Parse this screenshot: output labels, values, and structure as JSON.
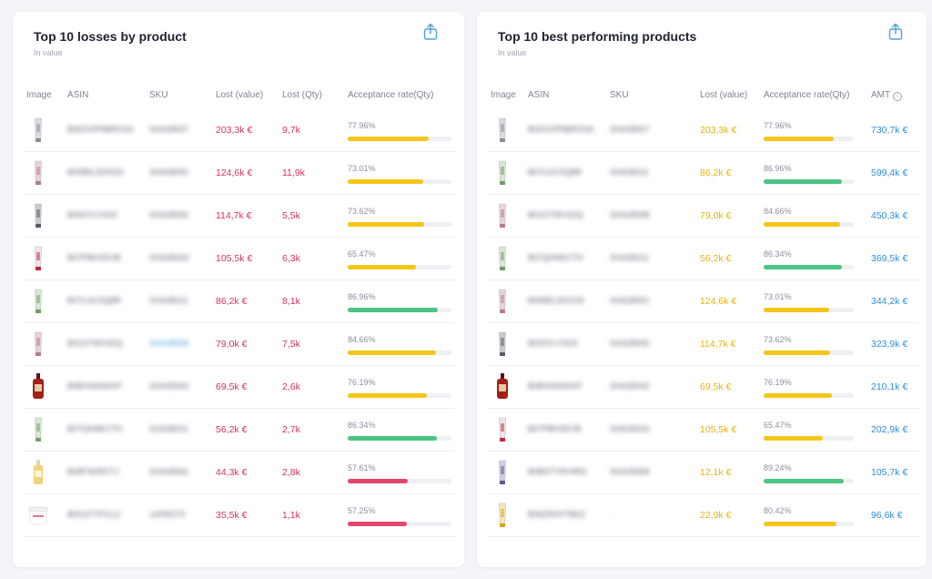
{
  "colors": {
    "yellow": "#f5c518",
    "green": "#4cc483",
    "red": "#e2476b"
  },
  "left": {
    "title": "Top 10 losses by product",
    "subtitle": "In value",
    "columns": {
      "image": "Image",
      "asin": "ASIN",
      "sku": "SKU",
      "lost_value": "Lost (value)",
      "lost_qty": "Lost (Qty)",
      "acceptance": "Acceptance rate(Qty)"
    },
    "rows": [
      {
        "asin": "B0DXVPNBRXSA",
        "sku": "SHA28007",
        "lost_value": "203,3k €",
        "lost_qty": "9,7k",
        "rate": "77.96%",
        "rate_pct": 77.96,
        "bar": "yellow",
        "thumb": "tube-grey",
        "sku_link": false
      },
      {
        "asin": "B0085L2DXGD",
        "sku": "SHA28091",
        "lost_value": "124,6k €",
        "lost_qty": "11,9k",
        "rate": "73.01%",
        "rate_pct": 73.01,
        "bar": "yellow",
        "thumb": "tube-pink",
        "sku_link": false
      },
      {
        "asin": "B000YLY4G9",
        "sku": "SHA28092",
        "lost_value": "114,7k €",
        "lost_qty": "5,5k",
        "rate": "73.62%",
        "rate_pct": 73.62,
        "bar": "yellow",
        "thumb": "tube-dark",
        "sku_link": false
      },
      {
        "asin": "B07PBHXEVB",
        "sku": "SHA28164",
        "lost_value": "105,5k €",
        "lost_qty": "6,3k",
        "rate": "65.47%",
        "rate_pct": 65.47,
        "bar": "yellow",
        "thumb": "tube-red",
        "sku_link": false
      },
      {
        "asin": "B07LGCSQ8R",
        "sku": "SHA28211",
        "lost_value": "86,2k €",
        "lost_qty": "8,1k",
        "rate": "86.96%",
        "rate_pct": 86.96,
        "bar": "green",
        "thumb": "tube-green",
        "sku_link": false
      },
      {
        "asin": "B01GTWV4ZQ",
        "sku": "SHA28098",
        "lost_value": "79,0k €",
        "lost_qty": "7,5k",
        "rate": "84.66%",
        "rate_pct": 84.66,
        "bar": "yellow",
        "thumb": "tube-pink",
        "sku_link": true
      },
      {
        "asin": "B0BVNAAKKP",
        "sku": "SHA28342",
        "lost_value": "69,5k €",
        "lost_qty": "2,6k",
        "rate": "76.19%",
        "rate_pct": 76.19,
        "bar": "yellow",
        "thumb": "bottle-red",
        "sku_link": false
      },
      {
        "asin": "B07QHNKCTH",
        "sku": "SHA28211",
        "lost_value": "56,2k €",
        "lost_qty": "2,7k",
        "rate": "86.34%",
        "rate_pct": 86.34,
        "bar": "green",
        "thumb": "tube-green",
        "sku_link": false
      },
      {
        "asin": "B08FSKRCTJ",
        "sku": "SHA28361",
        "lost_value": "44,3k €",
        "lost_qty": "2,8k",
        "rate": "57.61%",
        "rate_pct": 57.61,
        "bar": "red",
        "thumb": "bottle-amber",
        "sku_link": false
      },
      {
        "asin": "B0GSTTFCLU",
        "sku": "1A0W270",
        "lost_value": "35,5k €",
        "lost_qty": "1,1k",
        "rate": "57.25%",
        "rate_pct": 57.25,
        "bar": "red",
        "thumb": "jar-white",
        "sku_link": false
      }
    ]
  },
  "right": {
    "title": "Top 10 best performing products",
    "subtitle": "In value",
    "columns": {
      "image": "Image",
      "asin": "ASIN",
      "sku": "SKU",
      "lost_value": "Lost (value)",
      "acceptance": "Acceptance rate(Qty)",
      "amt": "AMT",
      "amt_info": "i"
    },
    "rows": [
      {
        "asin": "B0DXVPNBRXSA",
        "sku": "SHA28007",
        "lost_value": "203,3k €",
        "rate": "77.96%",
        "rate_pct": 77.96,
        "bar": "yellow",
        "amt": "730,7k €",
        "thumb": "tube-grey"
      },
      {
        "asin": "B07LGCSQ8R",
        "sku": "SHA28211",
        "lost_value": "86,2k €",
        "rate": "86.96%",
        "rate_pct": 86.96,
        "bar": "green",
        "amt": "599,4k €",
        "thumb": "tube-green"
      },
      {
        "asin": "B01GTWV4ZQ",
        "sku": "SHA28098",
        "lost_value": "79,0k €",
        "rate": "84.66%",
        "rate_pct": 84.66,
        "bar": "yellow",
        "amt": "450,3k €",
        "thumb": "tube-pink"
      },
      {
        "asin": "B07QHNKCTH",
        "sku": "SHA28211",
        "lost_value": "56,2k €",
        "rate": "86.34%",
        "rate_pct": 86.34,
        "bar": "green",
        "amt": "369,5k €",
        "thumb": "tube-green"
      },
      {
        "asin": "B0085L2DXGD",
        "sku": "SHA28091",
        "lost_value": "124,6k €",
        "rate": "73.01%",
        "rate_pct": 73.01,
        "bar": "yellow",
        "amt": "344,2k €",
        "thumb": "tube-pink"
      },
      {
        "asin": "B000YLY4G9",
        "sku": "SHA28092",
        "lost_value": "114,7k €",
        "rate": "73.62%",
        "rate_pct": 73.62,
        "bar": "yellow",
        "amt": "323,9k €",
        "thumb": "tube-dark"
      },
      {
        "asin": "B0BVNAAKKP",
        "sku": "SHA28342",
        "lost_value": "69,5k €",
        "rate": "76.19%",
        "rate_pct": 76.19,
        "bar": "yellow",
        "amt": "210,1k €",
        "thumb": "bottle-red"
      },
      {
        "asin": "B07PBHXEVB",
        "sku": "SHA28164",
        "lost_value": "105,5k €",
        "rate": "65.47%",
        "rate_pct": 65.47,
        "bar": "yellow",
        "amt": "202,9k €",
        "thumb": "tube-red"
      },
      {
        "asin": "B0BGTY8V4RG",
        "sku": "SHA28358",
        "lost_value": "12,1k €",
        "rate": "89.24%",
        "rate_pct": 89.24,
        "bar": "green",
        "amt": "105,7k €",
        "thumb": "tube-purple"
      },
      {
        "asin": "B06ZRHVTBKZ",
        "sku": "-",
        "lost_value": "22,9k €",
        "rate": "80.42%",
        "rate_pct": 80.42,
        "bar": "yellow",
        "amt": "96,6k €",
        "thumb": "tube-yellow"
      }
    ]
  }
}
